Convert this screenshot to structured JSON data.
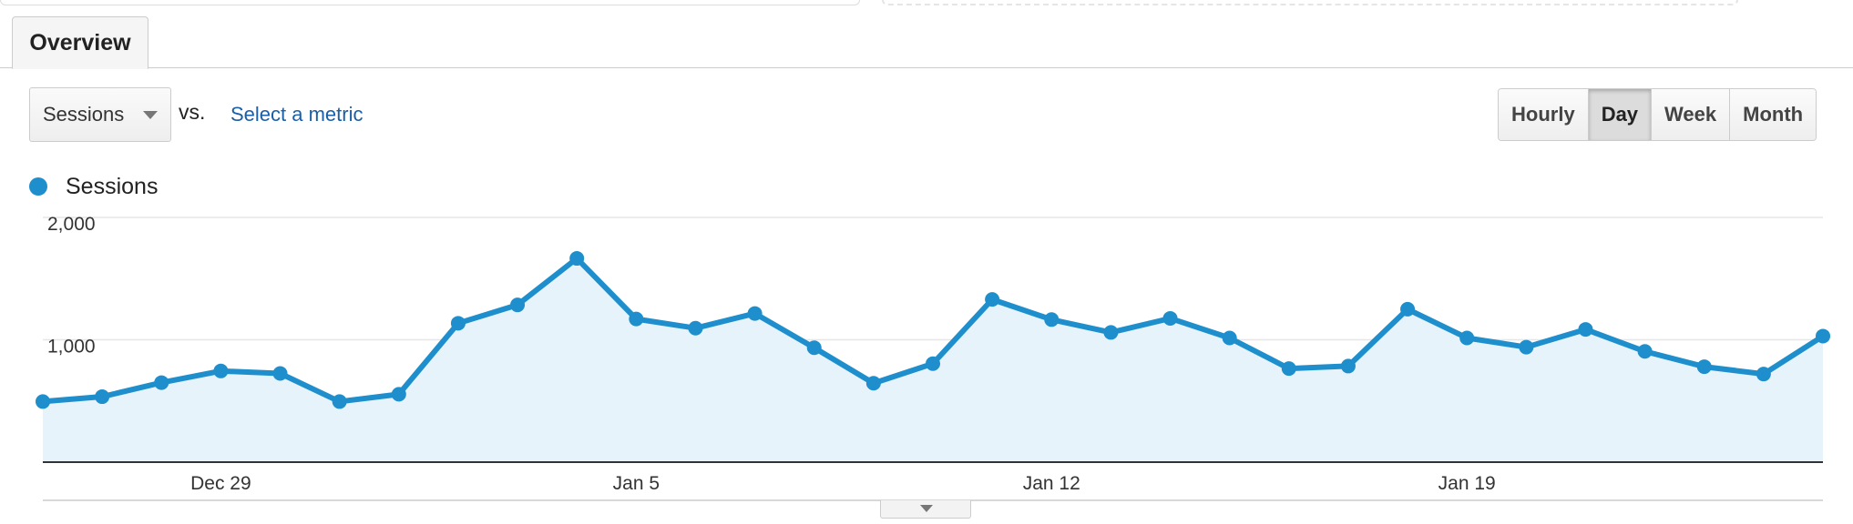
{
  "tabs": {
    "overview_label": "Overview"
  },
  "controls": {
    "metric_selected": "Sessions",
    "vs_label": "vs.",
    "select_metric_link": "Select a metric",
    "granularity": [
      "Hourly",
      "Day",
      "Week",
      "Month"
    ],
    "granularity_active": "Day"
  },
  "colors": {
    "series": "#1e8fcc",
    "area_fill": "#e6f3fa",
    "link": "#1a5fa8"
  },
  "chart_data": {
    "type": "area",
    "series": [
      {
        "name": "Sessions",
        "values": [
          495,
          535,
          650,
          745,
          725,
          495,
          555,
          1135,
          1285,
          1665,
          1170,
          1095,
          1215,
          935,
          645,
          805,
          1330,
          1165,
          1060,
          1175,
          1015,
          765,
          785,
          1250,
          1015,
          940,
          1085,
          905,
          780,
          720,
          1030
        ]
      }
    ],
    "x_tick_labels": [
      "Dec 29",
      "Jan 5",
      "Jan 12",
      "Jan 19"
    ],
    "x_tick_indices": [
      3,
      10,
      17,
      24
    ],
    "y_tick_labels": [
      "2,000",
      "1,000"
    ],
    "y_tick_values": [
      2000,
      1000
    ],
    "ylim": [
      0,
      2000
    ],
    "grid": true,
    "legend_position": "top-left"
  }
}
